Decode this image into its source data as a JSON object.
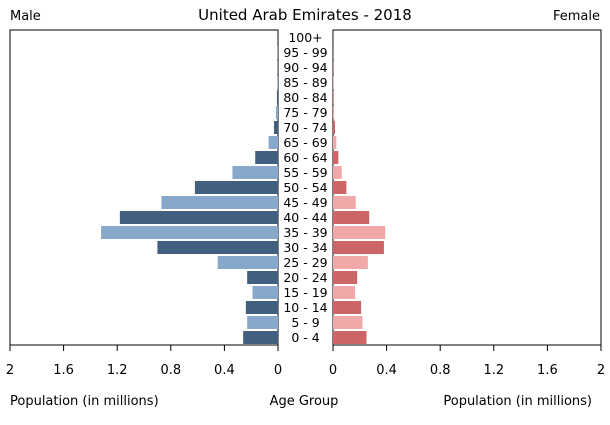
{
  "chart_data": {
    "type": "bar",
    "title": "United Arab Emirates - 2018",
    "left_label": "Male",
    "right_label": "Female",
    "xlabel_left": "Population (in millions)",
    "xlabel_center": "Age Group",
    "xlabel_right": "Population (in millions)",
    "xlim": [
      0,
      2
    ],
    "ticks": [
      "2",
      "1.6",
      "1.2",
      "0.8",
      "0.4",
      "0",
      "0",
      "0.4",
      "0.8",
      "1.2",
      "1.6",
      "2"
    ],
    "tick_values_left": [
      2,
      1.6,
      1.2,
      0.8,
      0.4,
      0
    ],
    "tick_values_right": [
      0,
      0.4,
      0.8,
      1.2,
      1.6,
      2
    ],
    "categories": [
      "100+",
      "95 - 99",
      "90 - 94",
      "85 - 89",
      "80 - 84",
      "75 - 79",
      "70 - 74",
      "65 - 69",
      "60 - 64",
      "55 - 59",
      "50 - 54",
      "45 - 49",
      "40 - 44",
      "35 - 39",
      "30 - 34",
      "25 - 29",
      "20 - 24",
      "15 - 19",
      "10 - 14",
      "5 - 9",
      "0 - 4"
    ],
    "series": [
      {
        "name": "Male",
        "values": [
          0.001,
          0.002,
          0.003,
          0.005,
          0.008,
          0.015,
          0.03,
          0.07,
          0.17,
          0.34,
          0.62,
          0.87,
          1.18,
          1.32,
          0.9,
          0.45,
          0.23,
          0.19,
          0.24,
          0.23,
          0.26
        ]
      },
      {
        "name": "Female",
        "values": [
          0.001,
          0.001,
          0.002,
          0.003,
          0.005,
          0.008,
          0.015,
          0.025,
          0.04,
          0.065,
          0.1,
          0.17,
          0.27,
          0.39,
          0.38,
          0.26,
          0.18,
          0.165,
          0.21,
          0.22,
          0.25
        ]
      }
    ],
    "colors": {
      "male_dark": "#41607f",
      "male_light": "#87a8ca",
      "female_dark": "#cc6666",
      "female_light": "#f0a8a8"
    }
  }
}
